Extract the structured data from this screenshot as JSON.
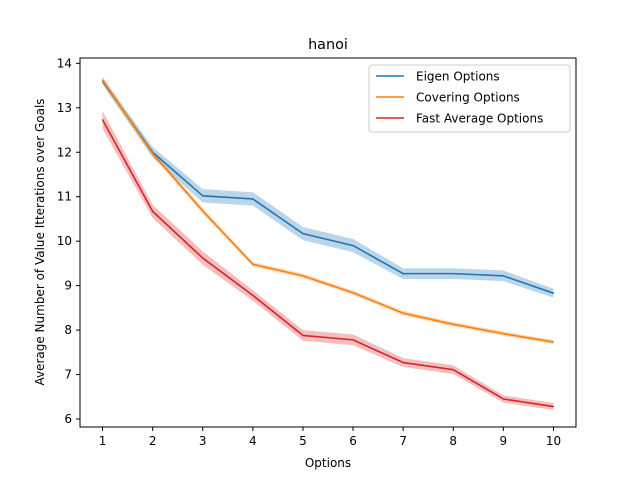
{
  "chart_data": {
    "type": "line",
    "title": "hanoi",
    "xlabel": "Options",
    "ylabel": "Average Number of Value Itterations over Goals",
    "x": [
      1,
      2,
      3,
      4,
      5,
      6,
      7,
      8,
      9,
      10
    ],
    "xlim": [
      0.55,
      10.45
    ],
    "ylim": [
      5.82,
      14.12
    ],
    "xticks": [
      1,
      2,
      3,
      4,
      5,
      6,
      7,
      8,
      9,
      10
    ],
    "yticks": [
      6,
      7,
      8,
      9,
      10,
      11,
      12,
      13,
      14
    ],
    "grid": false,
    "legend_position": "top-right",
    "series": [
      {
        "name": "Eigen Options",
        "color": "#1f77b4",
        "values": [
          13.6,
          12.0,
          11.02,
          10.95,
          10.17,
          9.9,
          9.27,
          9.27,
          9.22,
          8.83
        ],
        "band": [
          0.08,
          0.12,
          0.15,
          0.15,
          0.15,
          0.15,
          0.12,
          0.12,
          0.12,
          0.1
        ]
      },
      {
        "name": "Covering Options",
        "color": "#ff7f0e",
        "values": [
          13.62,
          11.97,
          10.68,
          9.48,
          9.22,
          8.84,
          8.38,
          8.13,
          7.92,
          7.73
        ],
        "band": [
          0.08,
          0.06,
          0.06,
          0.05,
          0.05,
          0.05,
          0.05,
          0.05,
          0.05,
          0.05
        ]
      },
      {
        "name": "Fast Average Options",
        "color": "#d62728",
        "values": [
          12.73,
          10.67,
          9.62,
          8.78,
          7.88,
          7.78,
          7.27,
          7.11,
          6.45,
          6.28
        ],
        "band": [
          0.2,
          0.15,
          0.15,
          0.12,
          0.12,
          0.12,
          0.1,
          0.1,
          0.08,
          0.08
        ]
      }
    ]
  }
}
